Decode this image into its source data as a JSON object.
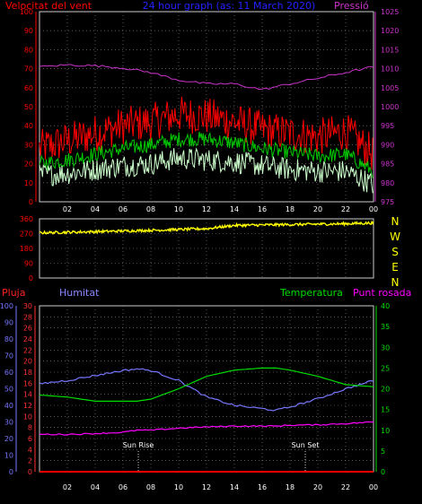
{
  "header": {
    "left_title": "Velocitat del vent",
    "center_title": "24 hour graph (as: 11 March 2020)",
    "right_title": "Pressió"
  },
  "bottom_header": {
    "pluja": "Pluja",
    "humitat": "Humitat",
    "temperatura": "Temperatura",
    "punt_rosada": "Punt rosada"
  },
  "compass": [
    "N",
    "W",
    "S",
    "E",
    "N"
  ],
  "colors": {
    "wind_gust": "#ff0000",
    "wind_avg": "#00cc00",
    "wind_min": "#ccffcc",
    "pressure": "#cc33cc",
    "direction": "#ffff00",
    "humidity": "#7777ff",
    "temperature": "#00dd00",
    "dewpoint": "#ff00ff",
    "rain": "#ff0000",
    "grid": "#888888"
  },
  "chart_data": [
    {
      "type": "line",
      "panel": "wind",
      "x_ticks": [
        "02",
        "04",
        "06",
        "08",
        "10",
        "12",
        "14",
        "16",
        "18",
        "20",
        "22",
        "00"
      ],
      "y_left_ticks": [
        "0",
        "10",
        "20",
        "30",
        "40",
        "50",
        "60",
        "70",
        "80",
        "90",
        "100"
      ],
      "y_left_range": [
        0,
        100
      ],
      "y_right_ticks": [
        "975",
        "980",
        "985",
        "990",
        "995",
        "1000",
        "1005",
        "1010",
        "1015",
        "1020",
        "1025"
      ],
      "y_right_range": [
        975,
        1025
      ],
      "grid": true,
      "hours": [
        0,
        2,
        4,
        6,
        8,
        10,
        12,
        14,
        16,
        18,
        20,
        22,
        24
      ],
      "series": [
        {
          "key": "wind_gust",
          "axis": "left",
          "values": [
            28,
            32,
            36,
            40,
            42,
            46,
            45,
            42,
            38,
            36,
            34,
            37,
            25
          ],
          "noise": 10
        },
        {
          "key": "wind_avg",
          "axis": "left",
          "values": [
            20,
            22,
            25,
            28,
            30,
            33,
            33,
            31,
            28,
            26,
            24,
            25,
            16
          ],
          "noise": 4
        },
        {
          "key": "wind_min",
          "axis": "left",
          "values": [
            14,
            15,
            17,
            19,
            20,
            23,
            22,
            21,
            19,
            17,
            16,
            16,
            9
          ],
          "noise": 6
        },
        {
          "key": "pressure",
          "axis": "right",
          "values": [
            1010.5,
            1011,
            1010.8,
            1010.2,
            1009,
            1007,
            1006,
            1006,
            1004.5,
            1006,
            1007.5,
            1009,
            1010.5
          ],
          "noise": 0.3
        }
      ]
    },
    {
      "type": "line",
      "panel": "wind_direction",
      "y_ticks": [
        "0",
        "90",
        "180",
        "270",
        "360"
      ],
      "y_range": [
        0,
        360
      ],
      "grid": true,
      "hours": [
        0,
        4,
        8,
        12,
        14,
        18,
        22,
        24
      ],
      "series": [
        {
          "key": "direction",
          "values": [
            275,
            282,
            290,
            300,
            320,
            325,
            330,
            335
          ],
          "noise": 8
        }
      ]
    },
    {
      "type": "line",
      "panel": "humidity_temperature",
      "x_ticks": [
        "02",
        "04",
        "06",
        "08",
        "10",
        "12",
        "14",
        "16",
        "18",
        "20",
        "22",
        "00"
      ],
      "y_far_left_ticks": [
        "0",
        "10",
        "20",
        "30",
        "40",
        "50",
        "60",
        "70",
        "80",
        "90",
        "100"
      ],
      "y_far_left_range": [
        0,
        100
      ],
      "y_left_ticks": [
        "0",
        "2",
        "4",
        "6",
        "8",
        "10",
        "12",
        "14",
        "16",
        "18",
        "20",
        "22",
        "24",
        "26",
        "28",
        "30"
      ],
      "y_left_range": [
        0,
        30
      ],
      "y_right_ticks": [
        "0",
        "5",
        "10",
        "15",
        "20",
        "25",
        "30",
        "35",
        "40"
      ],
      "y_right_range": [
        0,
        40
      ],
      "grid": true,
      "annotations": [
        {
          "label": "Sun Rise",
          "hour": 7.1
        },
        {
          "label": "Sun Set",
          "hour": 19.1
        }
      ],
      "hours": [
        0,
        2,
        4,
        6,
        7,
        8,
        10,
        12,
        14,
        16,
        17,
        18,
        20,
        22,
        24
      ],
      "series": [
        {
          "key": "humidity",
          "axis": "far_left",
          "values": [
            53,
            55,
            58,
            61,
            62,
            61,
            55,
            45,
            40,
            38,
            37,
            39,
            44,
            50,
            55
          ]
        },
        {
          "key": "temperature",
          "axis": "right",
          "values": [
            18.5,
            18,
            17,
            17,
            17,
            17.5,
            20,
            23,
            24.5,
            25,
            25,
            24.5,
            23,
            21,
            20.5
          ]
        },
        {
          "key": "dewpoint",
          "axis": "right",
          "values": [
            9,
            9,
            9.2,
            9.5,
            10,
            10,
            10.5,
            10.8,
            11,
            11,
            11,
            11.2,
            11.3,
            11.6,
            12
          ]
        },
        {
          "key": "rain",
          "axis": "far_left",
          "values": [
            0,
            0,
            0,
            0,
            0,
            0,
            0,
            0,
            0,
            0,
            0,
            0,
            0,
            0,
            0
          ]
        }
      ]
    }
  ]
}
